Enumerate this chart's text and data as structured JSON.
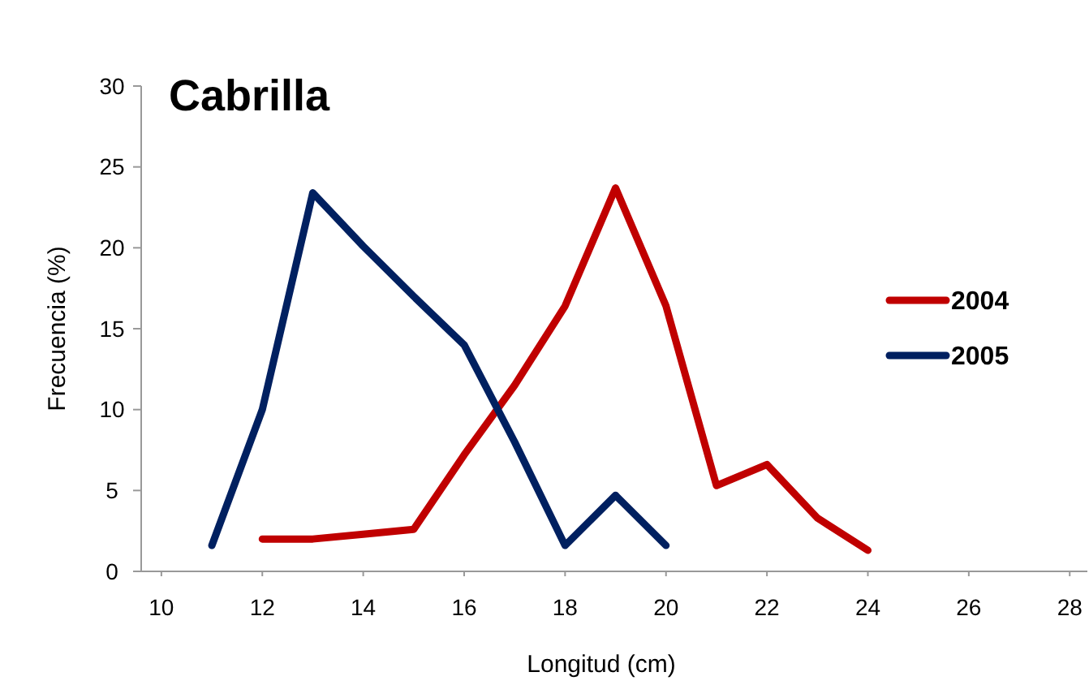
{
  "chart_data": {
    "type": "line",
    "title": "Cabrilla",
    "xlabel": "Longitud (cm)",
    "ylabel": "Frecuencia (%)",
    "xlim": [
      9.6,
      28.35
    ],
    "xticks": [
      10,
      12,
      14,
      16,
      18,
      20,
      22,
      24,
      26,
      28
    ],
    "ylim": [
      0,
      30
    ],
    "yticks": [
      0,
      5,
      10,
      15,
      20,
      25,
      30
    ],
    "grid": false,
    "legend": "right",
    "marker": "none",
    "line_style": "solid",
    "series": [
      {
        "name": "2004",
        "color": "#c00000",
        "x": [
          12,
          13,
          14,
          15,
          16,
          17,
          18,
          19,
          20,
          21,
          22,
          23,
          24
        ],
        "values": [
          2,
          2,
          2.3,
          2.6,
          7.2,
          11.5,
          16.4,
          23.7,
          16.4,
          5.3,
          6.6,
          3.3,
          1.3
        ]
      },
      {
        "name": "2005",
        "color": "#002060",
        "x": [
          11,
          12,
          13,
          14,
          15,
          16,
          17,
          18,
          19,
          20
        ],
        "values": [
          1.6,
          10,
          23.4,
          20.1,
          17,
          14,
          8,
          1.6,
          4.7,
          1.6
        ]
      }
    ]
  }
}
